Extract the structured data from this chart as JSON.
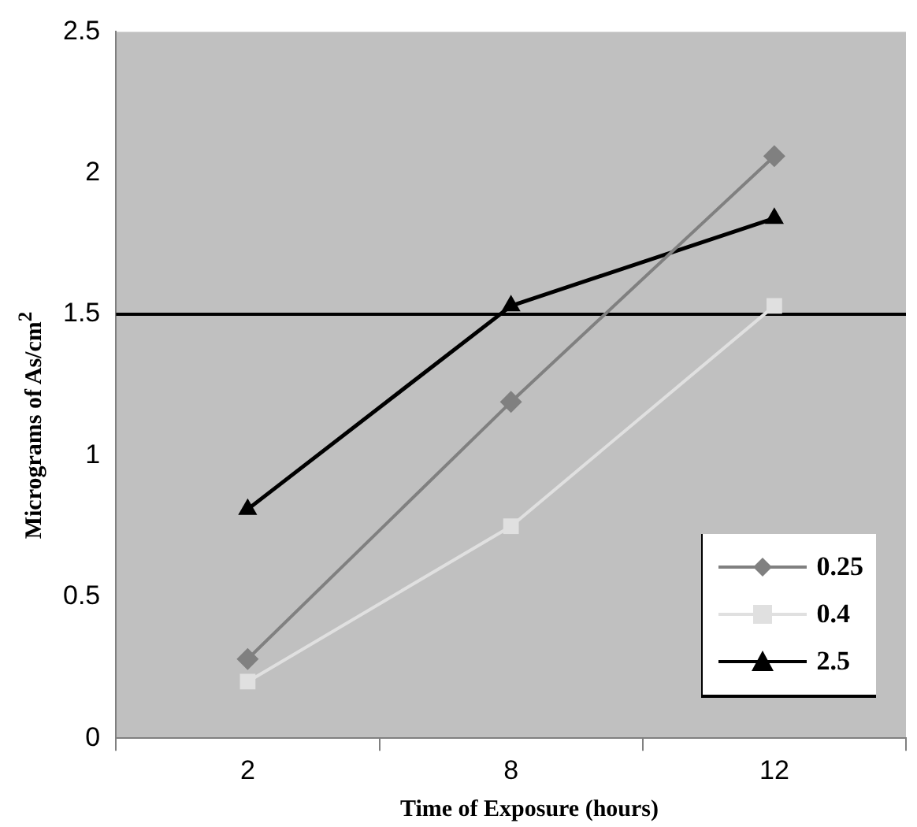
{
  "chart_data": {
    "type": "line",
    "xlabel": "Time of Exposure (hours)",
    "ylabel": "Micrograms of As/cm$^{2}$",
    "categories": [
      "2",
      "8",
      "12"
    ],
    "series": [
      {
        "name": "0.25",
        "color": "#808080",
        "marker": "diamond",
        "values": [
          0.28,
          1.19,
          2.06
        ]
      },
      {
        "name": "0.4",
        "color": "#e0e0e0",
        "marker": "square",
        "values": [
          0.2,
          0.75,
          1.53
        ]
      },
      {
        "name": "2.5",
        "color": "#000000",
        "marker": "triangle",
        "values": [
          0.81,
          1.53,
          1.84
        ]
      }
    ],
    "ylim": [
      0,
      2.5
    ],
    "yticks": [
      0,
      0.5,
      1,
      1.5,
      2,
      2.5
    ],
    "ref_lines": [
      {
        "axis": "y",
        "value": 1.5,
        "color": "#000000"
      }
    ],
    "grid": false,
    "legend": "bottom right",
    "line_style": "solid"
  }
}
